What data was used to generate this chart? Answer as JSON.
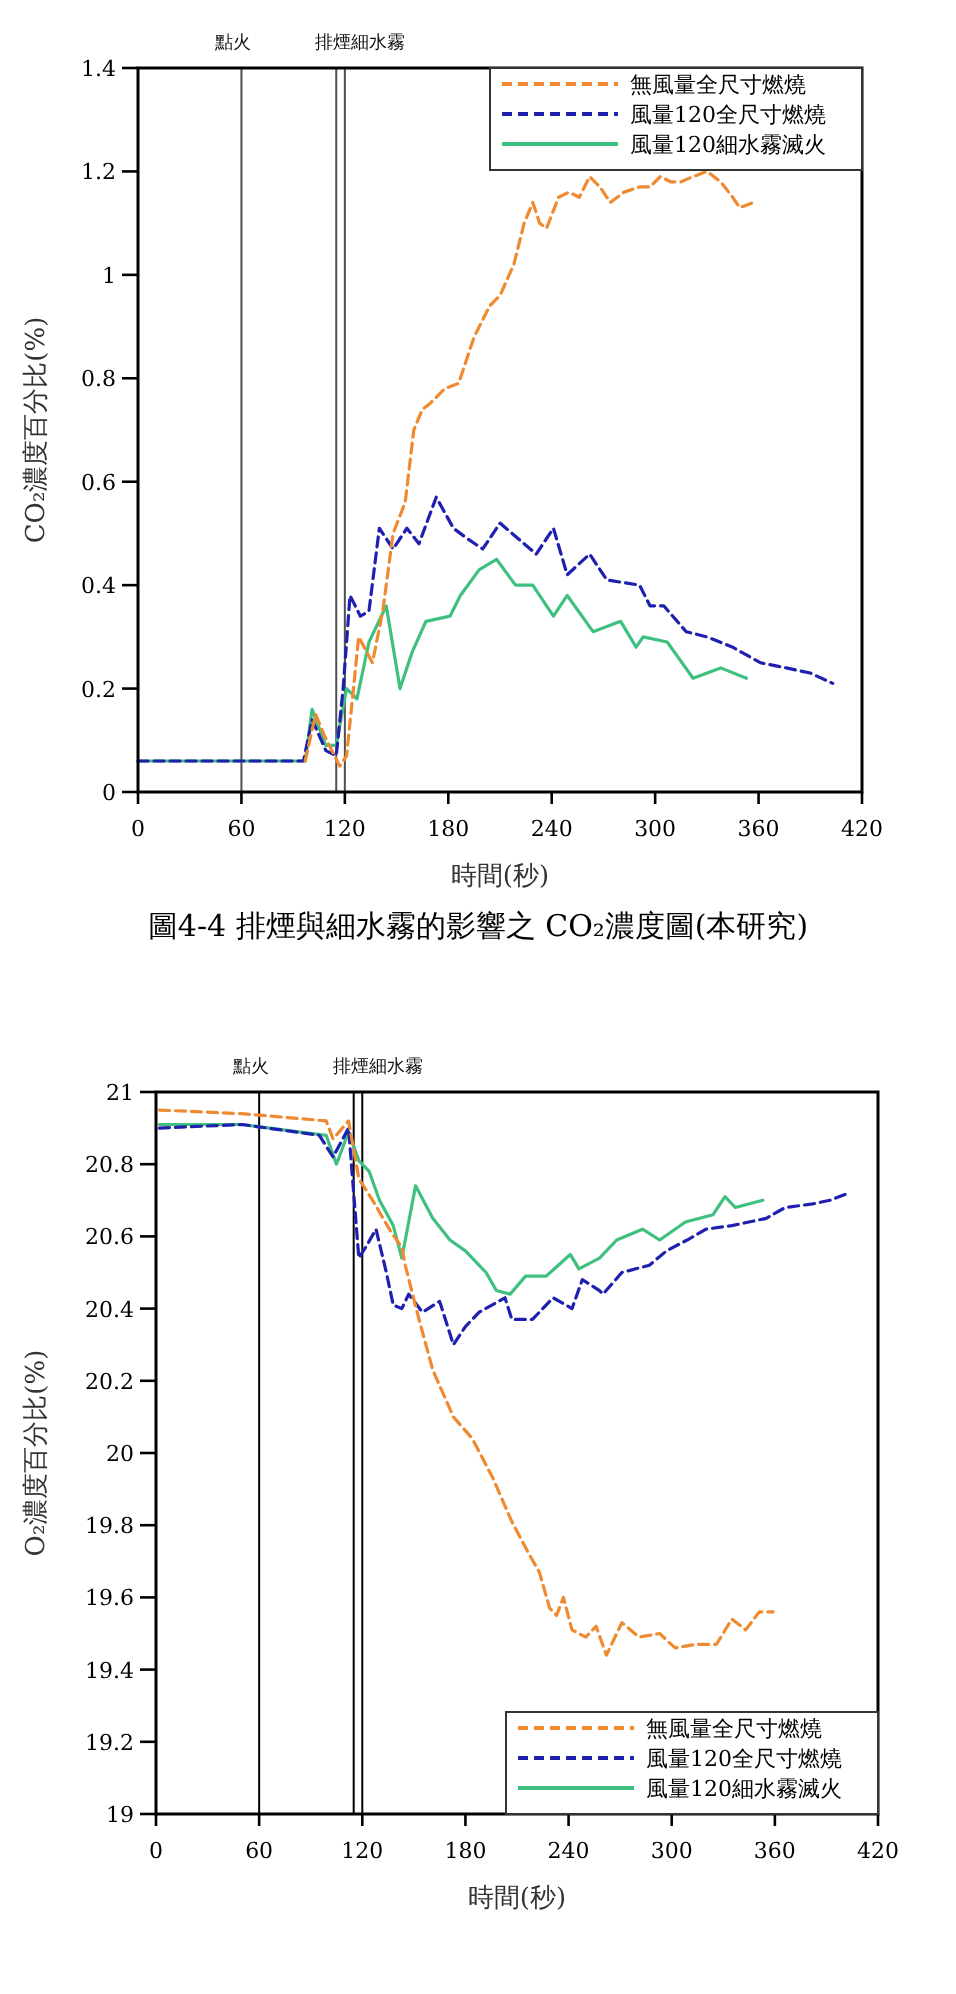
{
  "chart_data": [
    {
      "type": "line",
      "xlabel": "時間(秒)",
      "ylabel": "CO₂濃度百分比(%)",
      "xlim": [
        0,
        420
      ],
      "ylim": [
        0,
        1.4
      ],
      "xticks": [
        0,
        60,
        120,
        180,
        240,
        300,
        360,
        420
      ],
      "yticks": [
        0,
        0.2,
        0.4,
        0.6,
        0.8,
        1,
        1.2,
        1.4
      ],
      "legend": "top right",
      "ref_lines": [
        {
          "axis": "x",
          "value": 60,
          "label": "點火",
          "color": "#505050"
        },
        {
          "axis": "x",
          "value": 115,
          "label": "排煙細水霧",
          "color": "#505050"
        },
        {
          "axis": "x",
          "value": 120,
          "label": null,
          "color": "#505050"
        }
      ],
      "annotations": [
        "圖4-4 排煙與細水霧的影響之 CO₂濃度圖(本研究)"
      ],
      "series": [
        {
          "name": "無風量全尺寸燃燒",
          "color": "#f08a30",
          "line_style": "dashed",
          "x": [
            97,
            103,
            108,
            117,
            121,
            125,
            128,
            136,
            142,
            148,
            155,
            160,
            165,
            169,
            178,
            186,
            195,
            204,
            210,
            218,
            224,
            229,
            233,
            237,
            244,
            250,
            256,
            262,
            268,
            274,
            282,
            291,
            297,
            303,
            309,
            315,
            322,
            330,
            338,
            345,
            349,
            357
          ],
          "values": [
            0.06,
            0.15,
            0.11,
            0.05,
            0.07,
            0.2,
            0.3,
            0.25,
            0.35,
            0.5,
            0.56,
            0.7,
            0.74,
            0.75,
            0.78,
            0.79,
            0.88,
            0.94,
            0.96,
            1.02,
            1.1,
            1.14,
            1.1,
            1.09,
            1.15,
            1.16,
            1.15,
            1.19,
            1.17,
            1.14,
            1.16,
            1.17,
            1.17,
            1.19,
            1.18,
            1.18,
            1.19,
            1.2,
            1.18,
            1.15,
            1.13,
            1.14
          ]
        },
        {
          "name": "風量120全尺寸燃燒",
          "color": "#2020b0",
          "line_style": "dashed",
          "x": [
            0,
            96,
            101,
            109,
            115,
            119,
            123,
            129,
            134,
            140,
            148,
            156,
            163,
            173,
            183,
            191,
            200,
            210,
            217,
            231,
            241,
            249,
            262,
            272,
            291,
            297,
            305,
            318,
            330,
            345,
            361,
            376,
            390,
            403
          ],
          "values": [
            0.06,
            0.06,
            0.14,
            0.08,
            0.07,
            0.2,
            0.38,
            0.34,
            0.35,
            0.51,
            0.47,
            0.51,
            0.48,
            0.57,
            0.51,
            0.49,
            0.47,
            0.52,
            0.5,
            0.46,
            0.51,
            0.42,
            0.46,
            0.41,
            0.4,
            0.36,
            0.36,
            0.31,
            0.3,
            0.28,
            0.25,
            0.24,
            0.23,
            0.21
          ]
        },
        {
          "name": "風量120細水霧滅火",
          "color": "#40c080",
          "line_style": "solid",
          "x": [
            0,
            97,
            101,
            109,
            115,
            121,
            127,
            134,
            144,
            152,
            159,
            167,
            181,
            187,
            198,
            208,
            219,
            229,
            241,
            249,
            264,
            280,
            289,
            293,
            307,
            322,
            338,
            353
          ],
          "values": [
            0.06,
            0.06,
            0.16,
            0.09,
            0.09,
            0.2,
            0.18,
            0.29,
            0.36,
            0.2,
            0.27,
            0.33,
            0.34,
            0.38,
            0.43,
            0.45,
            0.4,
            0.4,
            0.34,
            0.38,
            0.31,
            0.33,
            0.28,
            0.3,
            0.29,
            0.22,
            0.24,
            0.22
          ]
        }
      ]
    },
    {
      "type": "line",
      "xlabel": "時間(秒)",
      "ylabel": "O₂濃度百分比(%)",
      "xlim": [
        0,
        420
      ],
      "ylim": [
        19,
        21
      ],
      "xticks": [
        0,
        60,
        120,
        180,
        240,
        300,
        360,
        420
      ],
      "yticks": [
        19,
        19.2,
        19.4,
        19.6,
        19.8,
        20,
        20.2,
        20.4,
        20.6,
        20.8,
        21
      ],
      "legend": "bottom right",
      "ref_lines": [
        {
          "axis": "x",
          "value": 60,
          "label": "點火",
          "color": "#000000"
        },
        {
          "axis": "x",
          "value": 115,
          "label": "排煙細水霧",
          "color": "#000000"
        },
        {
          "axis": "x",
          "value": 120,
          "label": null,
          "color": "#000000"
        }
      ],
      "series": [
        {
          "name": "無風量全尺寸燃燒",
          "color": "#f08a30",
          "line_style": "dashed",
          "x": [
            2,
            50,
            99,
            103,
            112,
            118,
            126,
            137,
            143,
            145,
            153,
            161,
            173,
            184,
            196,
            207,
            217,
            223,
            229,
            233,
            237,
            242,
            250,
            256,
            262,
            271,
            281,
            293,
            302,
            314,
            326,
            335,
            343,
            351,
            359
          ],
          "values": [
            20.95,
            20.94,
            20.92,
            20.87,
            20.92,
            20.76,
            20.7,
            20.61,
            20.57,
            20.52,
            20.37,
            20.23,
            20.1,
            20.04,
            19.93,
            19.81,
            19.72,
            19.67,
            19.57,
            19.55,
            19.6,
            19.51,
            19.49,
            19.52,
            19.44,
            19.53,
            19.49,
            19.5,
            19.46,
            19.47,
            19.47,
            19.54,
            19.51,
            19.56,
            19.56
          ]
        },
        {
          "name": "風量120全尺寸燃燒",
          "color": "#2020b0",
          "line_style": "dashed",
          "x": [
            2,
            50,
            95,
            103,
            112,
            118,
            122,
            128,
            134,
            138,
            143,
            147,
            155,
            165,
            173,
            180,
            188,
            203,
            207,
            219,
            231,
            242,
            248,
            258,
            260,
            271,
            287,
            297,
            309,
            320,
            335,
            355,
            366,
            382,
            392,
            403
          ],
          "values": [
            20.9,
            20.91,
            20.88,
            20.82,
            20.9,
            20.54,
            20.57,
            20.62,
            20.5,
            20.41,
            20.4,
            20.44,
            20.39,
            20.42,
            20.3,
            20.35,
            20.39,
            20.43,
            20.37,
            20.37,
            20.43,
            20.4,
            20.48,
            20.45,
            20.44,
            20.5,
            20.52,
            20.56,
            20.59,
            20.62,
            20.63,
            20.65,
            20.68,
            20.69,
            20.7,
            20.72
          ]
        },
        {
          "name": "風量120細水霧滅火",
          "color": "#40c080",
          "line_style": "solid",
          "x": [
            2,
            50,
            99,
            105,
            112,
            118,
            124,
            130,
            138,
            143,
            151,
            161,
            171,
            180,
            192,
            198,
            206,
            215,
            227,
            241,
            246,
            258,
            268,
            283,
            293,
            308,
            324,
            331,
            337,
            353
          ],
          "values": [
            20.91,
            20.91,
            20.88,
            20.8,
            20.89,
            20.81,
            20.78,
            20.7,
            20.63,
            20.54,
            20.74,
            20.65,
            20.59,
            20.56,
            20.5,
            20.45,
            20.44,
            20.49,
            20.49,
            20.55,
            20.51,
            20.54,
            20.59,
            20.62,
            20.59,
            20.64,
            20.66,
            20.71,
            20.68,
            20.7
          ]
        }
      ]
    }
  ]
}
